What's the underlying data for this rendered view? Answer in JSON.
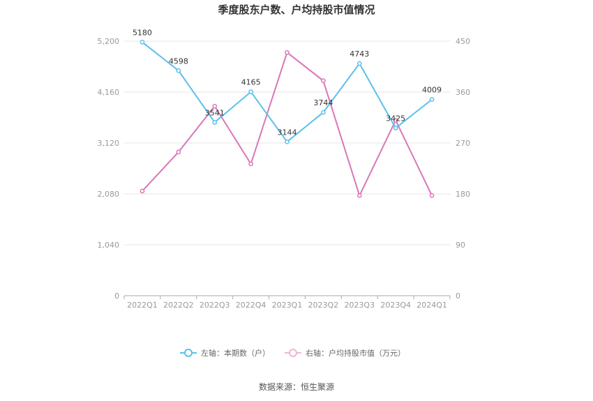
{
  "chart_data": {
    "type": "line",
    "title": "季度股东户数、户均持股市值情况",
    "categories": [
      "2022Q1",
      "2022Q2",
      "2022Q3",
      "2022Q4",
      "2023Q1",
      "2023Q2",
      "2023Q3",
      "2023Q4",
      "2024Q1"
    ],
    "series": [
      {
        "name": "左轴：本期数（户）",
        "axis": "left",
        "color": "#5bc0eb",
        "values": [
          5180,
          4598,
          3541,
          4165,
          3144,
          3744,
          4743,
          3425,
          4009
        ],
        "labels": [
          "5180",
          "4598",
          "3541",
          "4165",
          "3144",
          "3744",
          "4743",
          "3425",
          "4009"
        ]
      },
      {
        "name": "右轴：户均持股市值（万元）",
        "axis": "right",
        "color": "#d877b8",
        "values": [
          185,
          254,
          335,
          233,
          430,
          380,
          177,
          310,
          177
        ]
      }
    ],
    "left_axis": {
      "min": 0,
      "max": 5200,
      "ticks": [
        "0",
        "1,040",
        "2,080",
        "3,120",
        "4,160",
        "5,200"
      ]
    },
    "right_axis": {
      "min": 0,
      "max": 450,
      "ticks": [
        "0",
        "90",
        "180",
        "270",
        "360",
        "450"
      ]
    },
    "grid": true,
    "legend_position": "bottom"
  },
  "source": "数据来源：恒生聚源"
}
